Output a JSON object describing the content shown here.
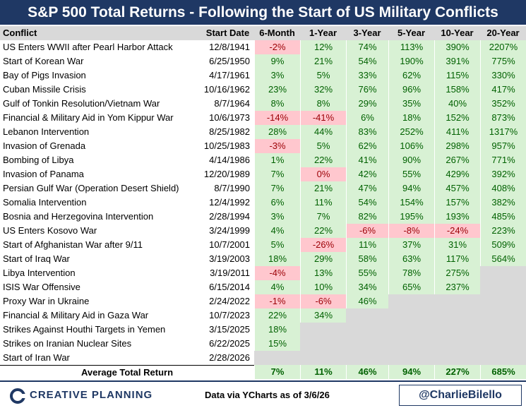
{
  "header": {
    "title": "S&P 500 Total Returns - Following the Start of US Military Conflicts"
  },
  "table": {
    "columns": [
      "Conflict",
      "Start Date",
      "6-Month",
      "1-Year",
      "3-Year",
      "5-Year",
      "10-Year",
      "20-Year"
    ],
    "rows": [
      [
        "US Enters WWII after Pearl Harbor Attack",
        "12/8/1941",
        "-2%",
        "12%",
        "74%",
        "113%",
        "390%",
        "2207%"
      ],
      [
        "Start of Korean War",
        "6/25/1950",
        "9%",
        "21%",
        "54%",
        "190%",
        "391%",
        "775%"
      ],
      [
        "Bay of Pigs Invasion",
        "4/17/1961",
        "3%",
        "5%",
        "33%",
        "62%",
        "115%",
        "330%"
      ],
      [
        "Cuban Missile Crisis",
        "10/16/1962",
        "23%",
        "32%",
        "76%",
        "96%",
        "158%",
        "417%"
      ],
      [
        "Gulf of Tonkin Resolution/Vietnam War",
        "8/7/1964",
        "8%",
        "8%",
        "29%",
        "35%",
        "40%",
        "352%"
      ],
      [
        "Financial & Military Aid in Yom Kippur War",
        "10/6/1973",
        "-14%",
        "-41%",
        "6%",
        "18%",
        "152%",
        "873%"
      ],
      [
        "Lebanon Intervention",
        "8/25/1982",
        "28%",
        "44%",
        "83%",
        "252%",
        "411%",
        "1317%"
      ],
      [
        "Invasion of Grenada",
        "10/25/1983",
        "-3%",
        "5%",
        "62%",
        "106%",
        "298%",
        "957%"
      ],
      [
        "Bombing of Libya",
        "4/14/1986",
        "1%",
        "22%",
        "41%",
        "90%",
        "267%",
        "771%"
      ],
      [
        "Invasion of Panama",
        "12/20/1989",
        "7%",
        "0%",
        "42%",
        "55%",
        "429%",
        "392%"
      ],
      [
        "Persian Gulf War (Operation Desert Shield)",
        "8/7/1990",
        "7%",
        "21%",
        "47%",
        "94%",
        "457%",
        "408%"
      ],
      [
        "Somalia Intervention",
        "12/4/1992",
        "6%",
        "11%",
        "54%",
        "154%",
        "157%",
        "382%"
      ],
      [
        "Bosnia and Herzegovina Intervention",
        "2/28/1994",
        "3%",
        "7%",
        "82%",
        "195%",
        "193%",
        "485%"
      ],
      [
        "US Enters Kosovo War",
        "3/24/1999",
        "4%",
        "22%",
        "-6%",
        "-8%",
        "-24%",
        "223%"
      ],
      [
        "Start of Afghanistan War after 9/11",
        "10/7/2001",
        "5%",
        "-26%",
        "11%",
        "37%",
        "31%",
        "509%"
      ],
      [
        "Start of Iraq War",
        "3/19/2003",
        "18%",
        "29%",
        "58%",
        "63%",
        "117%",
        "564%"
      ],
      [
        "Libya Intervention",
        "3/19/2011",
        "-4%",
        "13%",
        "55%",
        "78%",
        "275%",
        null
      ],
      [
        "ISIS War Offensive",
        "6/15/2014",
        "4%",
        "10%",
        "34%",
        "65%",
        "237%",
        null
      ],
      [
        "Proxy War in Ukraine",
        "2/24/2022",
        "-1%",
        "-6%",
        "46%",
        null,
        null,
        null
      ],
      [
        "Financial & Military Aid in Gaza War",
        "10/7/2023",
        "22%",
        "34%",
        null,
        null,
        null,
        null
      ],
      [
        "Strikes Against Houthi Targets in Yemen",
        "3/15/2025",
        "18%",
        null,
        null,
        null,
        null,
        null
      ],
      [
        "Strikes on Iranian Nuclear Sites",
        "6/22/2025",
        "15%",
        null,
        null,
        null,
        null,
        null
      ],
      [
        "Start of Iran War",
        "2/28/2026",
        null,
        null,
        null,
        null,
        null,
        null
      ]
    ],
    "average": {
      "label": "Average Total Return",
      "values": [
        "7%",
        "11%",
        "46%",
        "94%",
        "227%",
        "685%"
      ]
    }
  },
  "footer": {
    "brand": "CREATIVE PLANNING",
    "source": "Data via YCharts as of 3/6/26",
    "handle": "@CharlieBilello"
  }
}
